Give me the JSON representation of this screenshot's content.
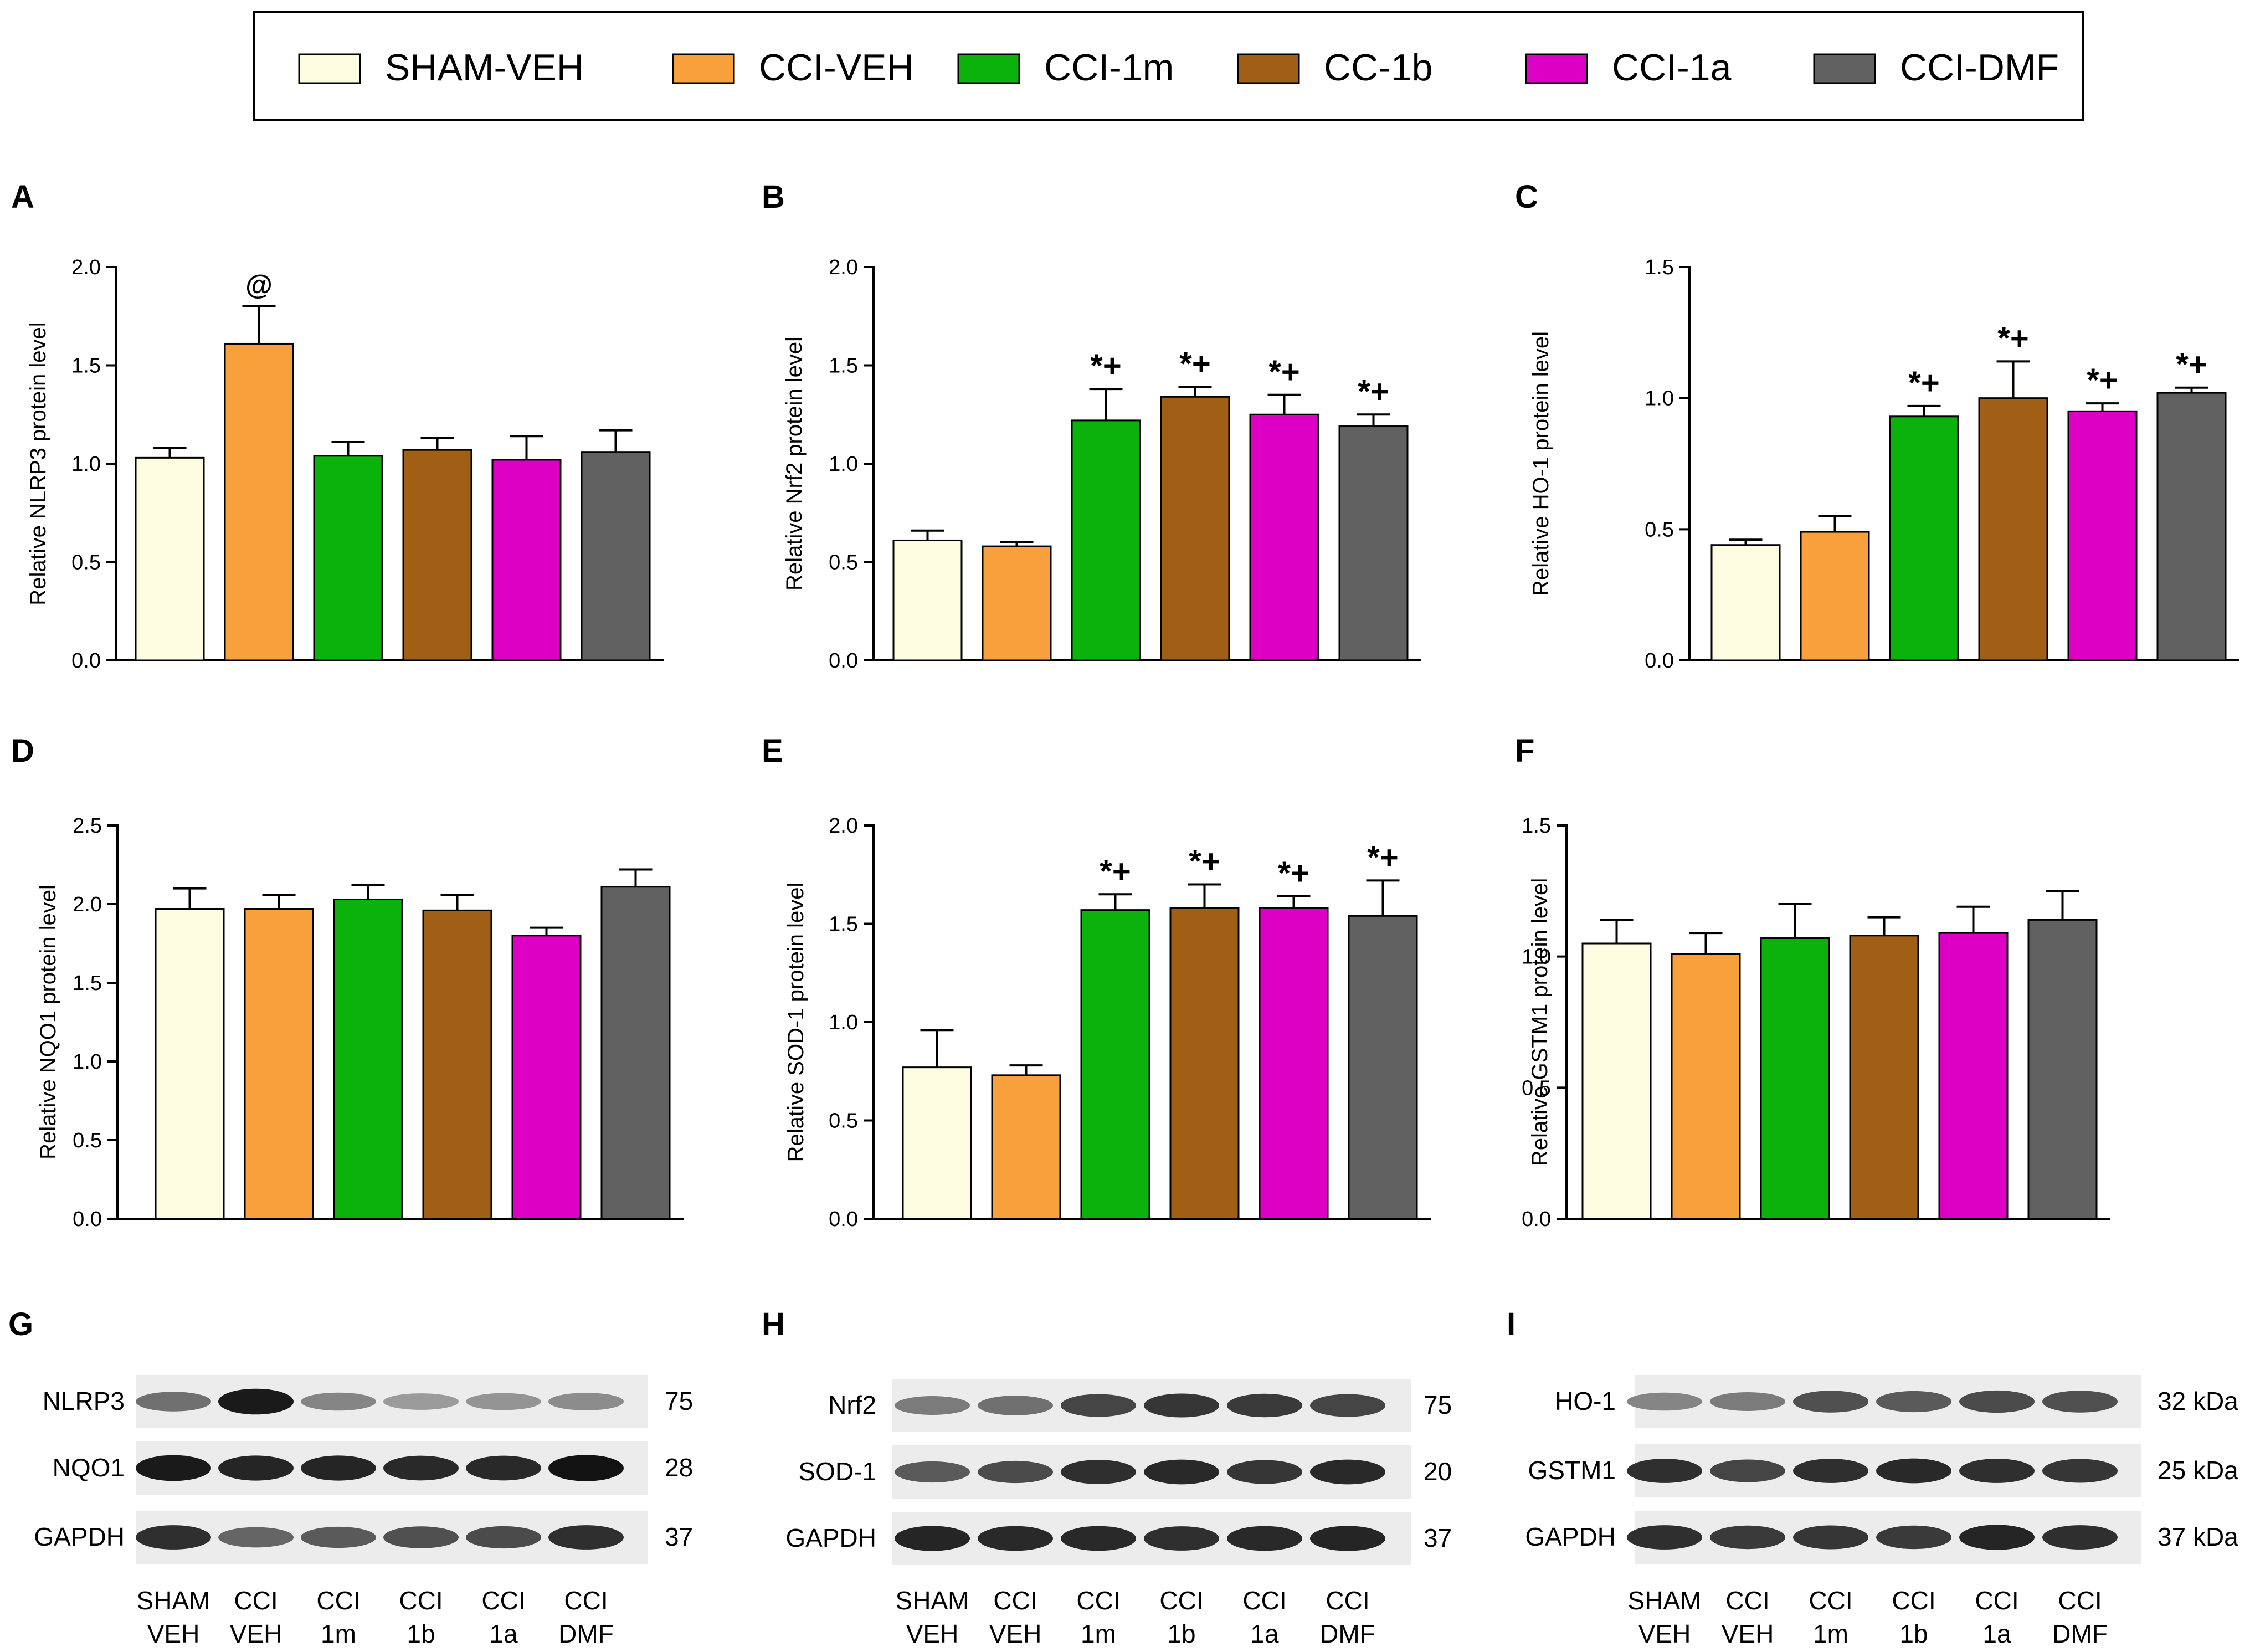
{
  "colors": {
    "SHAM-VEH": "#fdfbe0",
    "CCI-VEH": "#f8a13c",
    "CCI-1m": "#0bb20b",
    "CC-1b": "#a05f14",
    "CCI-1a": "#dd00c4",
    "CCI-DMF": "#616161"
  },
  "legend": {
    "items": [
      "SHAM-VEH",
      "CCI-VEH",
      "CCI-1m",
      "CC-1b",
      "CCI-1a",
      "CCI-DMF"
    ]
  },
  "chart_data": [
    {
      "panel": "A",
      "type": "bar",
      "categories": [
        "SHAM-VEH",
        "CCI-VEH",
        "CCI-1m",
        "CC-1b",
        "CCI-1a",
        "CCI-DMF"
      ],
      "values": [
        1.03,
        1.61,
        1.04,
        1.07,
        1.02,
        1.06
      ],
      "errors": [
        0.05,
        0.19,
        0.07,
        0.06,
        0.12,
        0.11
      ],
      "annotations": [
        "",
        "@",
        "",
        "",
        "",
        ""
      ],
      "ylabel": "Relative NLRP3 protein level",
      "ylim": [
        0,
        2.0
      ],
      "yticks": [
        "0.0",
        "0.5",
        "1.0",
        "1.5",
        "2.0"
      ]
    },
    {
      "panel": "B",
      "type": "bar",
      "categories": [
        "SHAM-VEH",
        "CCI-VEH",
        "CCI-1m",
        "CC-1b",
        "CCI-1a",
        "CCI-DMF"
      ],
      "values": [
        0.61,
        0.58,
        1.22,
        1.34,
        1.25,
        1.19
      ],
      "errors": [
        0.05,
        0.02,
        0.16,
        0.05,
        0.1,
        0.06
      ],
      "annotations": [
        "",
        "",
        "*+",
        "*+",
        "*+",
        "*+"
      ],
      "ylabel": "Relative Nrf2 protein level",
      "ylim": [
        0,
        2.0
      ],
      "yticks": [
        "0.0",
        "0.5",
        "1.0",
        "1.5",
        "2.0"
      ]
    },
    {
      "panel": "C",
      "type": "bar",
      "categories": [
        "SHAM-VEH",
        "CCI-VEH",
        "CCI-1m",
        "CC-1b",
        "CCI-1a",
        "CCI-DMF"
      ],
      "values": [
        0.44,
        0.49,
        0.93,
        1.0,
        0.95,
        1.02
      ],
      "errors": [
        0.02,
        0.06,
        0.04,
        0.14,
        0.03,
        0.02
      ],
      "annotations": [
        "",
        "",
        "*+",
        "*+",
        "*+",
        "*+"
      ],
      "ylabel": "Relative HO-1 protein level",
      "ylim": [
        0,
        1.5
      ],
      "yticks": [
        "0.0",
        "0.5",
        "1.0",
        "1.5"
      ]
    },
    {
      "panel": "D",
      "type": "bar",
      "categories": [
        "SHAM-VEH",
        "CCI-VEH",
        "CCI-1m",
        "CC-1b",
        "CCI-1a",
        "CCI-DMF"
      ],
      "values": [
        1.97,
        1.97,
        2.03,
        1.96,
        1.8,
        2.11
      ],
      "errors": [
        0.13,
        0.09,
        0.09,
        0.1,
        0.05,
        0.11
      ],
      "annotations": [
        "",
        "",
        "",
        "",
        "",
        ""
      ],
      "ylabel": "Relative NQO1 protein level",
      "ylim": [
        0,
        2.5
      ],
      "yticks": [
        "0.0",
        "0.5",
        "1.0",
        "1.5",
        "2.0",
        "2.5"
      ]
    },
    {
      "panel": "E",
      "type": "bar",
      "categories": [
        "SHAM-VEH",
        "CCI-VEH",
        "CCI-1m",
        "CC-1b",
        "CCI-1a",
        "CCI-DMF"
      ],
      "values": [
        0.77,
        0.73,
        1.57,
        1.58,
        1.58,
        1.54
      ],
      "errors": [
        0.19,
        0.05,
        0.08,
        0.12,
        0.06,
        0.18
      ],
      "annotations": [
        "",
        "",
        "*+",
        "*+",
        "*+",
        "*+"
      ],
      "ylabel": "Relative SOD-1 protein level",
      "ylim": [
        0,
        2.0
      ],
      "yticks": [
        "0.0",
        "0.5",
        "1.0",
        "1.5",
        "2.0"
      ]
    },
    {
      "panel": "F",
      "type": "bar",
      "categories": [
        "SHAM-VEH",
        "CCI-VEH",
        "CCI-1m",
        "CC-1b",
        "CCI-1a",
        "CCI-DMF"
      ],
      "values": [
        1.05,
        1.01,
        1.07,
        1.08,
        1.09,
        1.14
      ],
      "errors": [
        0.09,
        0.08,
        0.13,
        0.07,
        0.1,
        0.11
      ],
      "annotations": [
        "",
        "",
        "",
        "",
        "",
        ""
      ],
      "ylabel": "Relative GSTM1 protein level",
      "ylim": [
        0,
        1.5
      ],
      "yticks": [
        "0.0",
        "0.5",
        "1.0",
        "1.5"
      ]
    }
  ],
  "blots": [
    {
      "panel": "G",
      "rows": [
        {
          "label": "NLRP3",
          "size": "75",
          "intensity": [
            0.55,
            0.95,
            0.45,
            0.35,
            0.38,
            0.42
          ]
        },
        {
          "label": "NQO1",
          "size": "28",
          "intensity": [
            0.95,
            0.9,
            0.9,
            0.88,
            0.88,
            0.98
          ]
        },
        {
          "label": "GAPDH",
          "size": "37",
          "intensity": [
            0.85,
            0.6,
            0.65,
            0.7,
            0.72,
            0.85
          ]
        }
      ],
      "lanes": [
        [
          "SHAM",
          "VEH"
        ],
        [
          "CCI",
          "VEH"
        ],
        [
          "CCI",
          "1m"
        ],
        [
          "CCI",
          "1b"
        ],
        [
          "CCI",
          "1a"
        ],
        [
          "CCI",
          "DMF"
        ]
      ]
    },
    {
      "panel": "H",
      "rows": [
        {
          "label": "Nrf2",
          "size": "75",
          "intensity": [
            0.5,
            0.55,
            0.75,
            0.82,
            0.8,
            0.75
          ]
        },
        {
          "label": "SOD-1",
          "size": "20",
          "intensity": [
            0.65,
            0.72,
            0.85,
            0.88,
            0.82,
            0.88
          ]
        },
        {
          "label": "GAPDH",
          "size": "37",
          "intensity": [
            0.9,
            0.88,
            0.88,
            0.85,
            0.88,
            0.9
          ]
        }
      ],
      "lanes": [
        [
          "SHAM",
          "VEH"
        ],
        [
          "CCI",
          "VEH"
        ],
        [
          "CCI",
          "1m"
        ],
        [
          "CCI",
          "1b"
        ],
        [
          "CCI",
          "1a"
        ],
        [
          "CCI",
          "DMF"
        ]
      ]
    },
    {
      "panel": "I",
      "rows": [
        {
          "label": "HO-1",
          "size": "32 kDa",
          "intensity": [
            0.45,
            0.5,
            0.7,
            0.65,
            0.72,
            0.7
          ]
        },
        {
          "label": "GSTM1",
          "size": "25 kDa",
          "intensity": [
            0.85,
            0.75,
            0.85,
            0.88,
            0.85,
            0.82
          ]
        },
        {
          "label": "GAPDH",
          "size": "37 kDa",
          "intensity": [
            0.85,
            0.8,
            0.82,
            0.8,
            0.9,
            0.85
          ]
        }
      ],
      "lanes": [
        [
          "SHAM",
          "VEH"
        ],
        [
          "CCI",
          "VEH"
        ],
        [
          "CCI",
          "1m"
        ],
        [
          "CCI",
          "1b"
        ],
        [
          "CCI",
          "1a"
        ],
        [
          "CCI",
          "DMF"
        ]
      ]
    }
  ]
}
